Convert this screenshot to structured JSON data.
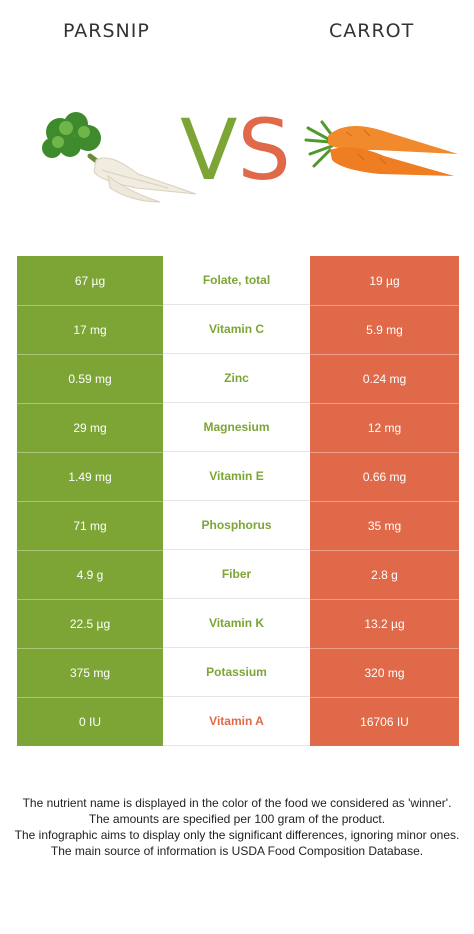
{
  "header": {
    "left_food": "PARSNIP",
    "right_food": "CARROT",
    "vs_v": "V",
    "vs_s": "S"
  },
  "colors": {
    "left_accent": "#7da535",
    "right_accent": "#e0694a"
  },
  "rows": [
    {
      "left": "67 µg",
      "nutrient": "Folate, total",
      "right": "19 µg",
      "winner": "left"
    },
    {
      "left": "17 mg",
      "nutrient": "Vitamin C",
      "right": "5.9 mg",
      "winner": "left"
    },
    {
      "left": "0.59 mg",
      "nutrient": "Zinc",
      "right": "0.24 mg",
      "winner": "left"
    },
    {
      "left": "29 mg",
      "nutrient": "Magnesium",
      "right": "12 mg",
      "winner": "left"
    },
    {
      "left": "1.49 mg",
      "nutrient": "Vitamin E",
      "right": "0.66 mg",
      "winner": "left"
    },
    {
      "left": "71 mg",
      "nutrient": "Phosphorus",
      "right": "35 mg",
      "winner": "left"
    },
    {
      "left": "4.9 g",
      "nutrient": "Fiber",
      "right": "2.8 g",
      "winner": "left"
    },
    {
      "left": "22.5 µg",
      "nutrient": "Vitamin K",
      "right": "13.2 µg",
      "winner": "left"
    },
    {
      "left": "375 mg",
      "nutrient": "Potassium",
      "right": "320 mg",
      "winner": "left"
    },
    {
      "left": "0 IU",
      "nutrient": "Vitamin A",
      "right": "16706 IU",
      "winner": "right"
    }
  ],
  "notes": [
    "The nutrient name is displayed in the color of the food we considered as 'winner'.",
    "The amounts are specified per 100 gram of the product.",
    "The infographic aims to display only the significant differences, ignoring minor ones.",
    "The main source of information is USDA Food Composition Database."
  ]
}
